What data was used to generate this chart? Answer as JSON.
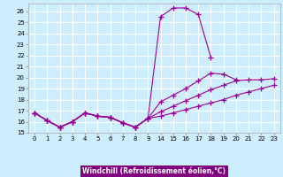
{
  "xlabel": "Windchill (Refroidissement éolien,°C)",
  "background_color": "#cceeff",
  "grid_color": "#ffffff",
  "line_color": "#990099",
  "xlabel_bg": "#800080",
  "ylim": [
    15,
    26.7
  ],
  "yticks": [
    15,
    16,
    17,
    18,
    19,
    20,
    21,
    22,
    23,
    24,
    25,
    26
  ],
  "xtick_labels": [
    "0",
    "1",
    "2",
    "3",
    "4",
    "5",
    "6",
    "7",
    "8",
    "9",
    "14",
    "15",
    "16",
    "17",
    "18",
    "19",
    "20",
    "21",
    "22",
    "23"
  ],
  "lines": [
    {
      "indices": [
        0,
        1,
        2,
        3,
        4,
        5,
        6,
        7,
        8,
        9,
        10,
        11,
        12,
        13,
        14
      ],
      "y": [
        16.8,
        16.1,
        15.5,
        16.0,
        16.8,
        16.5,
        16.4,
        15.9,
        15.5,
        16.3,
        25.5,
        26.3,
        26.3,
        25.7,
        21.8
      ]
    },
    {
      "indices": [
        0,
        1,
        2,
        3,
        4,
        5,
        6,
        7,
        8,
        9,
        10,
        11,
        12,
        13,
        14,
        15,
        16
      ],
      "y": [
        16.8,
        16.1,
        15.5,
        16.0,
        16.8,
        16.5,
        16.4,
        15.9,
        15.5,
        16.3,
        17.8,
        18.4,
        19.0,
        19.7,
        20.4,
        20.3,
        19.8
      ]
    },
    {
      "indices": [
        0,
        1,
        2,
        3,
        4,
        5,
        6,
        7,
        8,
        9,
        10,
        11,
        12,
        13,
        14,
        15,
        16,
        17,
        18,
        19
      ],
      "y": [
        16.8,
        16.1,
        15.5,
        16.0,
        16.8,
        16.5,
        16.4,
        15.9,
        15.5,
        16.3,
        16.9,
        17.4,
        17.9,
        18.4,
        18.9,
        19.3,
        19.7,
        19.8,
        19.8,
        19.9
      ]
    },
    {
      "indices": [
        0,
        1,
        2,
        3,
        4,
        5,
        6,
        7,
        8,
        9,
        10,
        11,
        12,
        13,
        14,
        15,
        16,
        17,
        18,
        19
      ],
      "y": [
        16.8,
        16.1,
        15.5,
        16.0,
        16.8,
        16.5,
        16.4,
        15.9,
        15.5,
        16.3,
        16.5,
        16.8,
        17.1,
        17.4,
        17.7,
        18.0,
        18.4,
        18.7,
        19.0,
        19.3
      ]
    }
  ]
}
